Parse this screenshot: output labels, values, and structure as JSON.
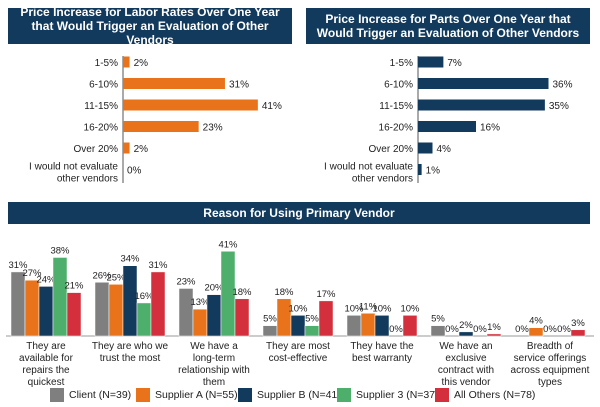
{
  "titles": {
    "labor": "Price Increase for Labor Rates Over One Year that Would Trigger an Evaluation of Other Vendors",
    "parts": "Price Increase for Parts Over One Year that Would Trigger an Evaluation of Other Vendors",
    "reason": "Reason for Using Primary Vendor"
  },
  "colors": {
    "header": "#123a5c",
    "client": "#7f7f7f",
    "supplier_a": "#e8731a",
    "supplier_b": "#123a5c",
    "supplier_c": "#4daf6b",
    "others": "#d32f3c"
  },
  "chart_data": [
    {
      "type": "bar",
      "orientation": "horizontal",
      "title": "Price Increase for Labor Rates Over One Year that Would Trigger an Evaluation of Other Vendors",
      "categories": [
        "1-5%",
        "6-10%",
        "11-15%",
        "16-20%",
        "Over 20%",
        "I would not evaluate other vendors"
      ],
      "values": [
        2,
        31,
        41,
        23,
        2,
        0
      ],
      "value_labels": [
        "2%",
        "31%",
        "41%",
        "23%",
        "2%",
        "0%"
      ],
      "xlim": [
        0,
        45
      ],
      "grid": false
    },
    {
      "type": "bar",
      "orientation": "horizontal",
      "title": "Price Increase for Parts Over One Year that Would Trigger an Evaluation of Other Vendors",
      "categories": [
        "1-5%",
        "6-10%",
        "11-15%",
        "16-20%",
        "Over 20%",
        "I would not evaluate other vendors"
      ],
      "values": [
        7,
        36,
        35,
        16,
        4,
        1
      ],
      "value_labels": [
        "7%",
        "36%",
        "35%",
        "16%",
        "4%",
        "1%"
      ],
      "xlim": [
        0,
        40
      ],
      "grid": false
    },
    {
      "type": "bar",
      "orientation": "vertical",
      "title": "Reason for Using Primary Vendor",
      "categories": [
        "They are available for repairs the quickest",
        "They are who we trust the most",
        "We have a long-term relationship with them",
        "They are most cost-effective",
        "They have the best warranty",
        "We have an exclusive contract with this vendor",
        "Breadth of service offerings across equipment types"
      ],
      "series": [
        {
          "name": "Client (N=39)",
          "values": [
            31,
            26,
            23,
            5,
            10,
            5,
            0
          ]
        },
        {
          "name": "Supplier A (N=55)",
          "values": [
            27,
            25,
            13,
            18,
            11,
            0,
            4
          ]
        },
        {
          "name": "Supplier B (N=41)",
          "values": [
            24,
            34,
            20,
            10,
            10,
            2,
            0
          ]
        },
        {
          "name": "Supplier 3 (N=37)",
          "values": [
            38,
            16,
            41,
            5,
            0,
            0,
            0
          ]
        },
        {
          "name": "All Others (N=78)",
          "values": [
            21,
            31,
            18,
            17,
            10,
            1,
            3
          ]
        }
      ],
      "ylim": [
        0,
        45
      ],
      "grid": false,
      "legend": "bottom"
    }
  ]
}
